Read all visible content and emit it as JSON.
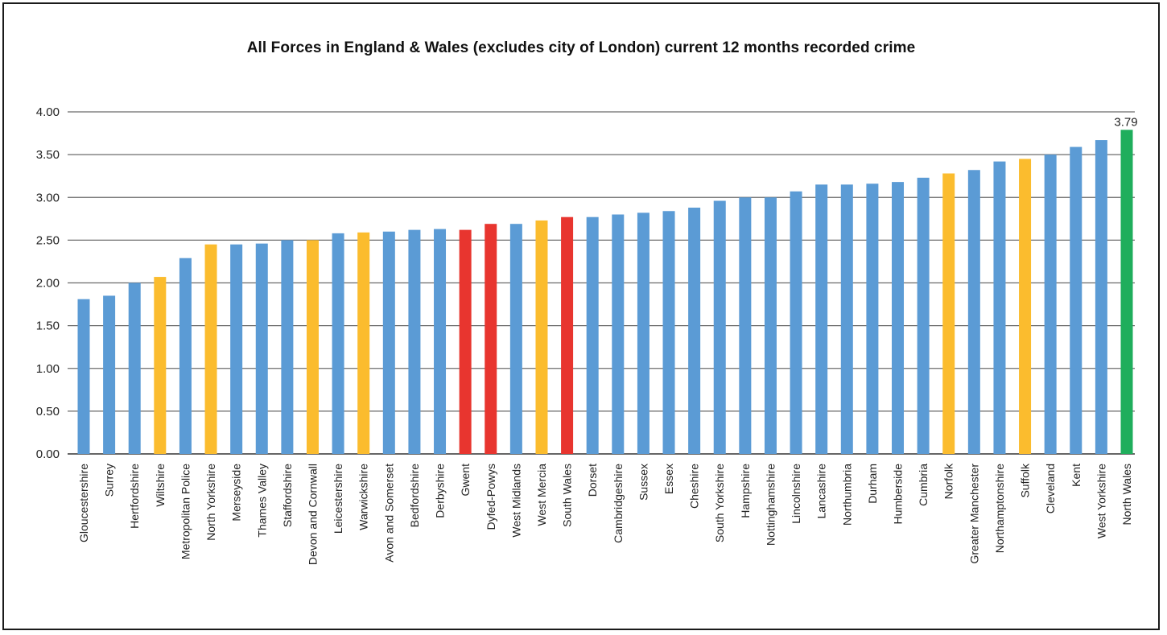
{
  "chart_data": {
    "type": "bar",
    "title": "All Forces in England & Wales (excludes city of London) current 12 months recorded crime",
    "xlabel": "",
    "ylabel": "",
    "ylim": [
      0,
      4
    ],
    "y_ticks": [
      "0.00",
      "0.50",
      "1.00",
      "1.50",
      "2.00",
      "2.50",
      "3.00",
      "3.50",
      "4.00"
    ],
    "grid": "horizontal",
    "legend": "none",
    "colors": {
      "blue": "#5b9bd5",
      "yellow": "#fbbc2e",
      "red": "#e8352f",
      "green": "#1fae5c"
    },
    "categories": [
      "Gloucestershire",
      "Surrey",
      "Hertfordshire",
      "Wiltshire",
      "Metropolitan Police",
      "North Yorkshire",
      "Merseyside",
      "Thames Valley",
      "Staffordshire",
      "Devon and Cornwall",
      "Leicestershire",
      "Warwickshire",
      "Avon and Somerset",
      "Bedfordshire",
      "Derbyshire",
      "Gwent",
      "Dyfed-Powys",
      "West Midlands",
      "West Mercia",
      "South Wales",
      "Dorset",
      "Cambridgeshire",
      "Sussex",
      "Essex",
      "Cheshire",
      "South Yorkshire",
      "Hampshire",
      "Nottinghamshire",
      "Lincolnshire",
      "Lancashire",
      "Northumbria",
      "Durham",
      "Humberside",
      "Cumbria",
      "Norfolk",
      "Greater Manchester",
      "Northamptonshire",
      "Suffolk",
      "Cleveland",
      "Kent",
      "West Yorkshire",
      "North Wales"
    ],
    "values": [
      1.81,
      1.85,
      2.0,
      2.07,
      2.29,
      2.45,
      2.45,
      2.46,
      2.5,
      2.5,
      2.58,
      2.59,
      2.6,
      2.62,
      2.63,
      2.62,
      2.69,
      2.69,
      2.73,
      2.77,
      2.77,
      2.8,
      2.82,
      2.84,
      2.88,
      2.96,
      3.0,
      3.0,
      3.07,
      3.15,
      3.15,
      3.16,
      3.18,
      3.23,
      3.28,
      3.32,
      3.42,
      3.45,
      3.5,
      3.59,
      3.67,
      3.79
    ],
    "bar_colors": [
      "blue",
      "blue",
      "blue",
      "yellow",
      "blue",
      "yellow",
      "blue",
      "blue",
      "blue",
      "yellow",
      "blue",
      "yellow",
      "blue",
      "blue",
      "blue",
      "red",
      "red",
      "blue",
      "yellow",
      "red",
      "blue",
      "blue",
      "blue",
      "blue",
      "blue",
      "blue",
      "blue",
      "blue",
      "blue",
      "blue",
      "blue",
      "blue",
      "blue",
      "blue",
      "yellow",
      "blue",
      "blue",
      "yellow",
      "blue",
      "blue",
      "blue",
      "green"
    ],
    "data_labels": [
      {
        "index": 41,
        "text": "3.79"
      }
    ]
  }
}
